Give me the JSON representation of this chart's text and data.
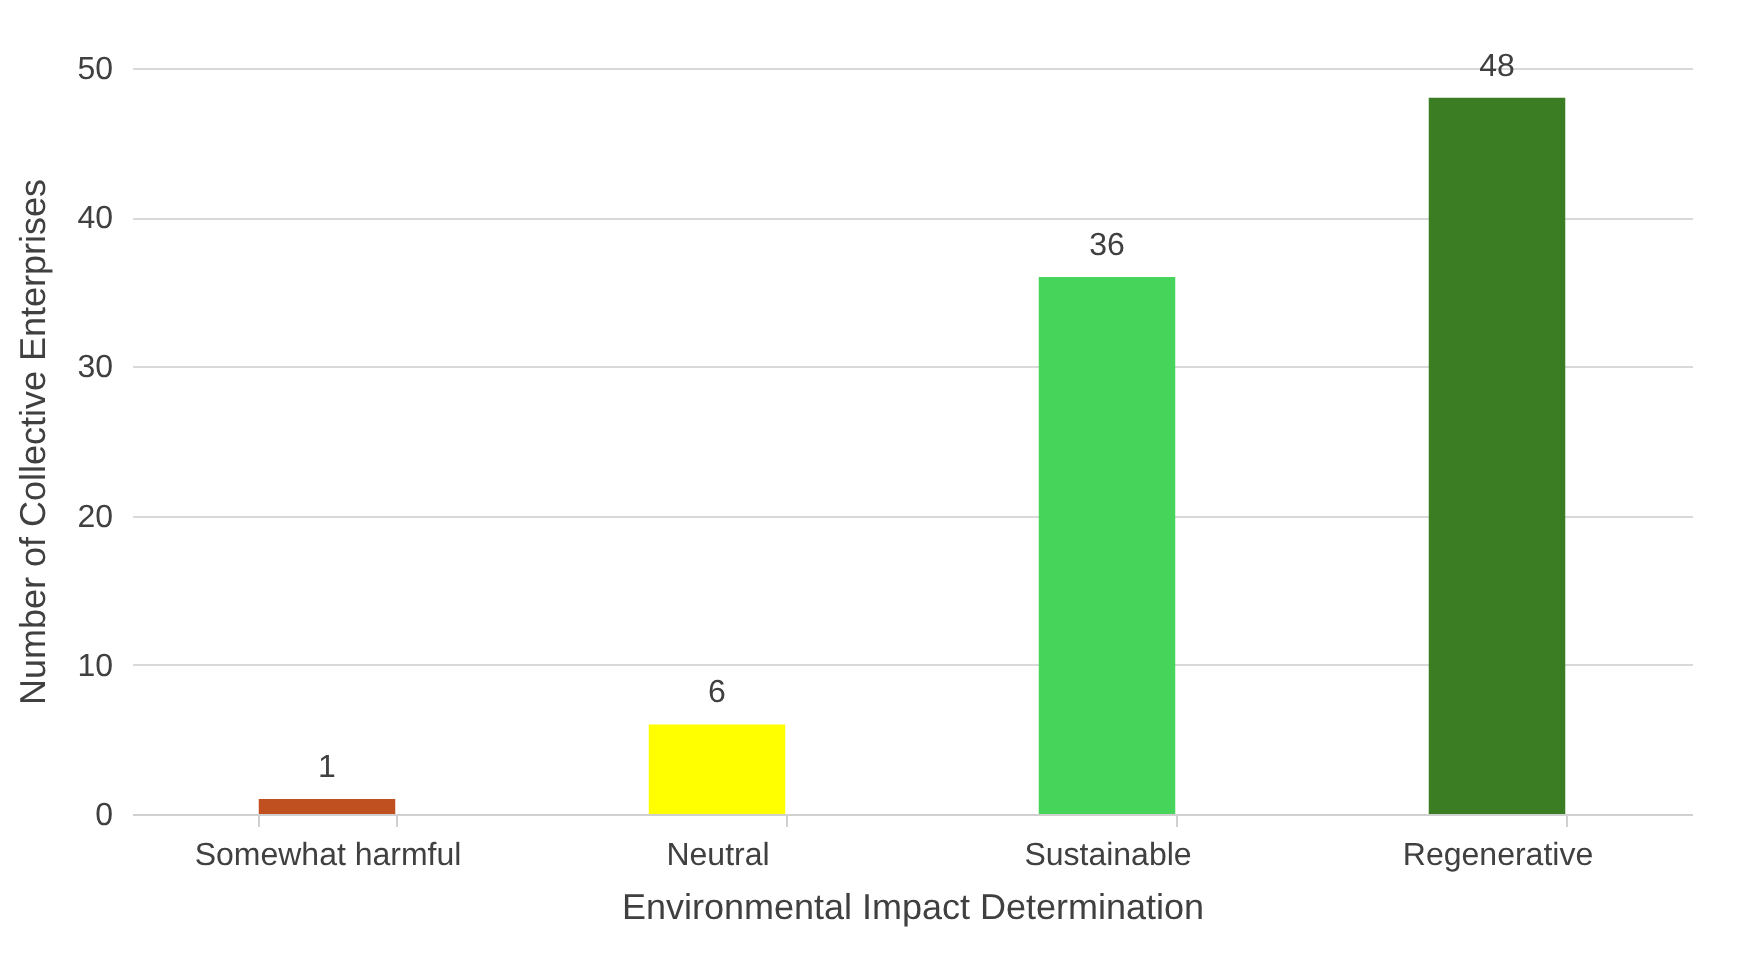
{
  "chart_data": {
    "type": "bar",
    "xlabel": "Environmental Impact Determination",
    "ylabel": "Number of Collective Enterprises",
    "categories": [
      "Somewhat harmful",
      "Neutral",
      "Sustainable",
      "Regenerative"
    ],
    "values": [
      1,
      6,
      36,
      48
    ],
    "colors": [
      "#c0501f",
      "#ffff00",
      "#47d45a",
      "#3a7d22"
    ],
    "ylim": [
      0,
      50
    ],
    "yticks": [
      0,
      10,
      20,
      30,
      40,
      50
    ],
    "grid": "y",
    "data_labels": true
  }
}
